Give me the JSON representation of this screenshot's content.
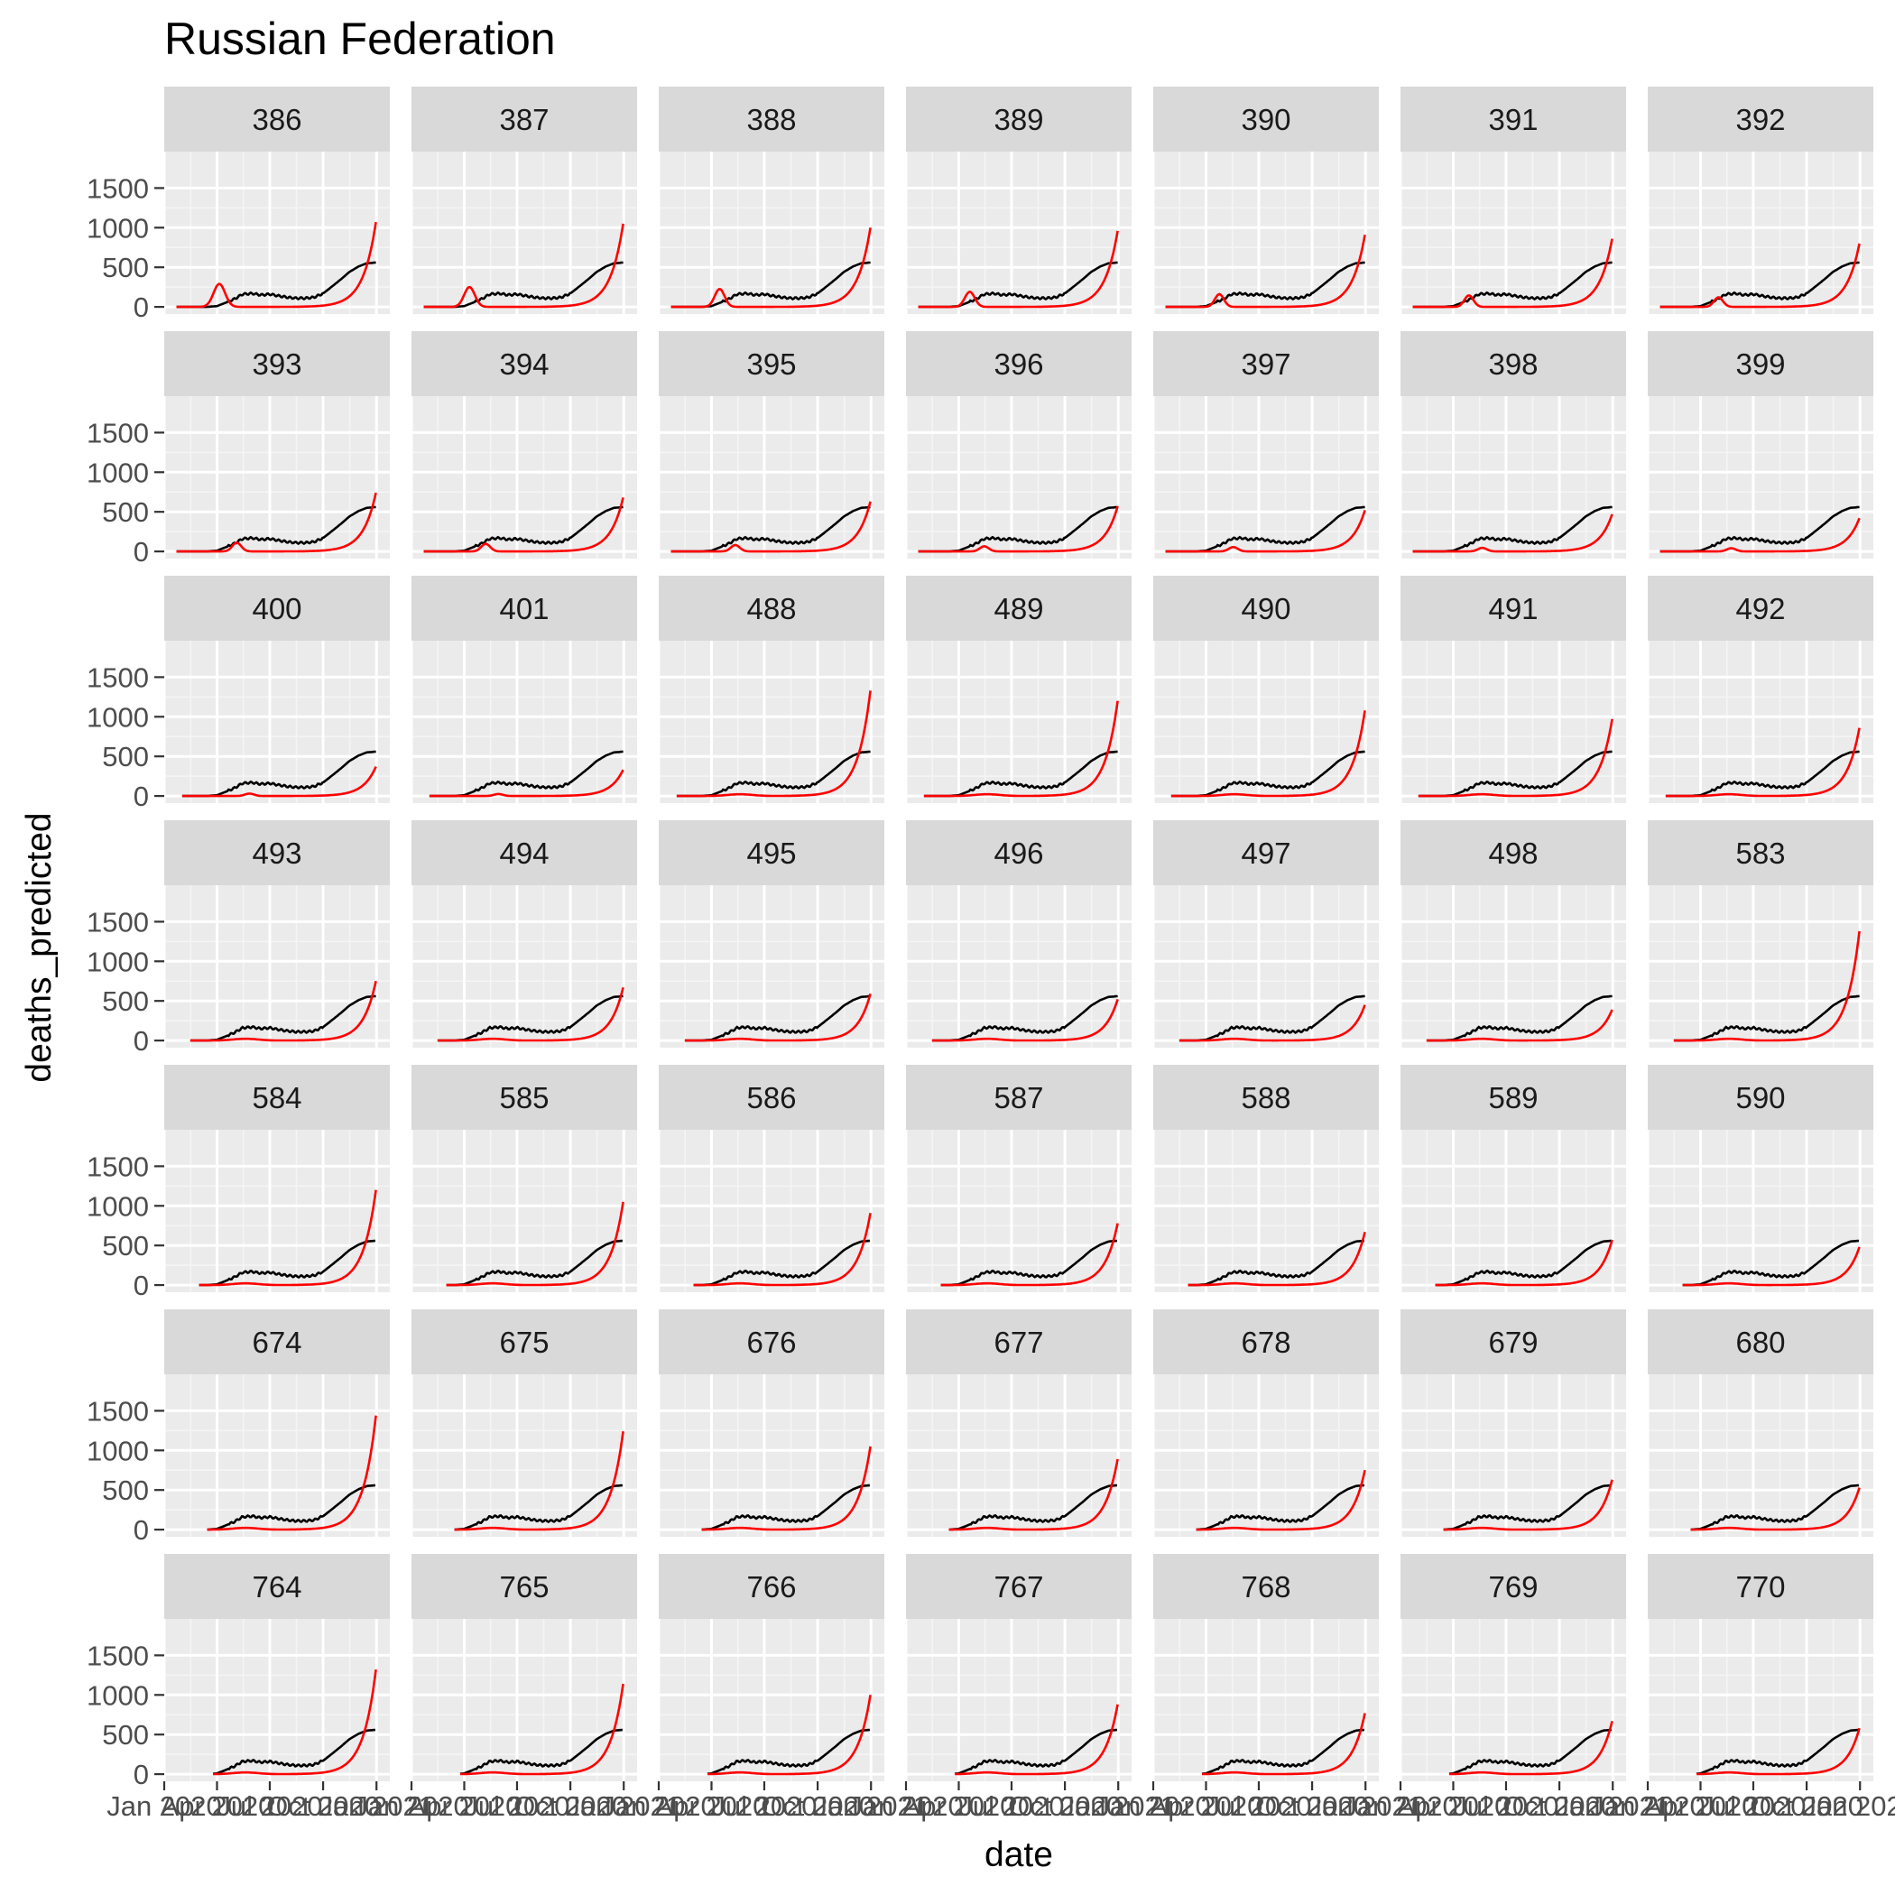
{
  "chart_data": {
    "type": "line",
    "title": "Russian Federation",
    "xlabel": "date",
    "ylabel": "deaths_predicted",
    "facet_layout": "7 columns x 7 rows, shared axes",
    "grid": true,
    "legend": "none",
    "colors": {
      "panel_background": "#ebebeb",
      "strip_background": "#d9d9d9",
      "grid_major": "#ffffff",
      "grid_minor": "#f5f5f5",
      "observed_line": "#000000",
      "predicted_line": "#ff0000"
    },
    "x_ticks": [
      "Jan 2020",
      "Apr 2020",
      "Jul 2020",
      "Oct 2020",
      "Jan 2021"
    ],
    "x_tick_labels": [
      "Jan 2020",
      "Apr 2020",
      "Jul 2020",
      "Oct 2020",
      "Jan 2021"
    ],
    "xlim": [
      "2020-01-01",
      "2021-01-24"
    ],
    "y_ticks": [
      0,
      500,
      1000,
      1500
    ],
    "ylim": [
      -90,
      1960
    ],
    "observed": {
      "dates": [
        "2020-01-22",
        "2020-03-15",
        "2020-04-01",
        "2020-04-15",
        "2020-05-01",
        "2020-05-15",
        "2020-06-01",
        "2020-06-15",
        "2020-07-01",
        "2020-07-15",
        "2020-08-01",
        "2020-08-15",
        "2020-09-01",
        "2020-09-15",
        "2020-10-01",
        "2020-10-15",
        "2020-11-01",
        "2020-11-15",
        "2020-12-01",
        "2020-12-15",
        "2020-12-31"
      ],
      "values": [
        0,
        0,
        10,
        50,
        100,
        160,
        170,
        150,
        160,
        140,
        120,
        110,
        110,
        120,
        170,
        250,
        350,
        440,
        510,
        550,
        560
      ]
    },
    "facets": [
      {
        "label": "386",
        "start": "2020-01-22",
        "end_value": 1070,
        "bump": 290,
        "bump_date": "2020-04-05",
        "bump_width_days": 14
      },
      {
        "label": "387",
        "start": "2020-01-22",
        "end_value": 1050,
        "bump": 250,
        "bump_date": "2020-04-10",
        "bump_width_days": 13
      },
      {
        "label": "388",
        "start": "2020-01-22",
        "end_value": 1000,
        "bump": 225,
        "bump_date": "2020-04-15",
        "bump_width_days": 12
      },
      {
        "label": "389",
        "start": "2020-01-22",
        "end_value": 960,
        "bump": 190,
        "bump_date": "2020-04-20",
        "bump_width_days": 12
      },
      {
        "label": "390",
        "start": "2020-01-22",
        "end_value": 910,
        "bump": 160,
        "bump_date": "2020-04-24",
        "bump_width_days": 11
      },
      {
        "label": "391",
        "start": "2020-01-22",
        "end_value": 860,
        "bump": 145,
        "bump_date": "2020-04-28",
        "bump_width_days": 11
      },
      {
        "label": "392",
        "start": "2020-01-22",
        "end_value": 800,
        "bump": 120,
        "bump_date": "2020-05-02",
        "bump_width_days": 11
      },
      {
        "label": "393",
        "start": "2020-01-22",
        "end_value": 740,
        "bump": 110,
        "bump_date": "2020-05-05",
        "bump_width_days": 11
      },
      {
        "label": "394",
        "start": "2020-01-22",
        "end_value": 680,
        "bump": 95,
        "bump_date": "2020-05-08",
        "bump_width_days": 11
      },
      {
        "label": "395",
        "start": "2020-01-22",
        "end_value": 630,
        "bump": 80,
        "bump_date": "2020-05-12",
        "bump_width_days": 11
      },
      {
        "label": "396",
        "start": "2020-01-22",
        "end_value": 570,
        "bump": 65,
        "bump_date": "2020-05-15",
        "bump_width_days": 11
      },
      {
        "label": "397",
        "start": "2020-01-22",
        "end_value": 520,
        "bump": 55,
        "bump_date": "2020-05-18",
        "bump_width_days": 11
      },
      {
        "label": "398",
        "start": "2020-01-22",
        "end_value": 470,
        "bump": 45,
        "bump_date": "2020-05-21",
        "bump_width_days": 11
      },
      {
        "label": "399",
        "start": "2020-01-22",
        "end_value": 420,
        "bump": 40,
        "bump_date": "2020-05-24",
        "bump_width_days": 11
      },
      {
        "label": "400",
        "start": "2020-02-01",
        "end_value": 370,
        "bump": 30,
        "bump_date": "2020-05-27",
        "bump_width_days": 11
      },
      {
        "label": "401",
        "start": "2020-02-01",
        "end_value": 330,
        "bump": 25,
        "bump_date": "2020-05-30",
        "bump_width_days": 11
      },
      {
        "label": "488",
        "start": "2020-02-01",
        "end_value": 1330,
        "bump": 0,
        "bump_date": "2020-06-01",
        "bump_width_days": 11
      },
      {
        "label": "489",
        "start": "2020-02-01",
        "end_value": 1200,
        "bump": 0,
        "bump_date": "2020-06-01",
        "bump_width_days": 11
      },
      {
        "label": "490",
        "start": "2020-02-01",
        "end_value": 1080,
        "bump": 0,
        "bump_date": "2020-06-01",
        "bump_width_days": 11
      },
      {
        "label": "491",
        "start": "2020-02-01",
        "end_value": 970,
        "bump": 0,
        "bump_date": "2020-06-01",
        "bump_width_days": 11
      },
      {
        "label": "492",
        "start": "2020-02-01",
        "end_value": 860,
        "bump": 0,
        "bump_date": "2020-06-01",
        "bump_width_days": 11
      },
      {
        "label": "493",
        "start": "2020-02-15",
        "end_value": 750,
        "bump": 0,
        "bump_date": "2020-06-01",
        "bump_width_days": 11
      },
      {
        "label": "494",
        "start": "2020-02-15",
        "end_value": 670,
        "bump": 0,
        "bump_date": "2020-06-01",
        "bump_width_days": 11
      },
      {
        "label": "495",
        "start": "2020-02-15",
        "end_value": 590,
        "bump": 0,
        "bump_date": "2020-06-01",
        "bump_width_days": 11
      },
      {
        "label": "496",
        "start": "2020-02-15",
        "end_value": 520,
        "bump": 0,
        "bump_date": "2020-06-01",
        "bump_width_days": 11
      },
      {
        "label": "497",
        "start": "2020-02-15",
        "end_value": 450,
        "bump": 0,
        "bump_date": "2020-06-01",
        "bump_width_days": 11
      },
      {
        "label": "498",
        "start": "2020-02-15",
        "end_value": 390,
        "bump": 0,
        "bump_date": "2020-06-01",
        "bump_width_days": 11
      },
      {
        "label": "583",
        "start": "2020-02-15",
        "end_value": 1380,
        "bump": 0,
        "bump_date": "2020-06-01",
        "bump_width_days": 11
      },
      {
        "label": "584",
        "start": "2020-03-01",
        "end_value": 1200,
        "bump": 0,
        "bump_date": "2020-06-01",
        "bump_width_days": 11
      },
      {
        "label": "585",
        "start": "2020-03-01",
        "end_value": 1050,
        "bump": 0,
        "bump_date": "2020-06-01",
        "bump_width_days": 11
      },
      {
        "label": "586",
        "start": "2020-03-01",
        "end_value": 910,
        "bump": 0,
        "bump_date": "2020-06-01",
        "bump_width_days": 11
      },
      {
        "label": "587",
        "start": "2020-03-01",
        "end_value": 780,
        "bump": 0,
        "bump_date": "2020-06-01",
        "bump_width_days": 11
      },
      {
        "label": "588",
        "start": "2020-03-01",
        "end_value": 670,
        "bump": 0,
        "bump_date": "2020-06-01",
        "bump_width_days": 11
      },
      {
        "label": "589",
        "start": "2020-03-01",
        "end_value": 570,
        "bump": 0,
        "bump_date": "2020-06-01",
        "bump_width_days": 11
      },
      {
        "label": "590",
        "start": "2020-03-01",
        "end_value": 480,
        "bump": 0,
        "bump_date": "2020-06-01",
        "bump_width_days": 11
      },
      {
        "label": "674",
        "start": "2020-03-15",
        "end_value": 1440,
        "bump": 0,
        "bump_date": "2020-06-01",
        "bump_width_days": 11
      },
      {
        "label": "675",
        "start": "2020-03-15",
        "end_value": 1240,
        "bump": 0,
        "bump_date": "2020-06-01",
        "bump_width_days": 11
      },
      {
        "label": "676",
        "start": "2020-03-15",
        "end_value": 1050,
        "bump": 0,
        "bump_date": "2020-06-01",
        "bump_width_days": 11
      },
      {
        "label": "677",
        "start": "2020-03-15",
        "end_value": 890,
        "bump": 0,
        "bump_date": "2020-06-01",
        "bump_width_days": 11
      },
      {
        "label": "678",
        "start": "2020-03-15",
        "end_value": 750,
        "bump": 0,
        "bump_date": "2020-06-01",
        "bump_width_days": 11
      },
      {
        "label": "679",
        "start": "2020-03-15",
        "end_value": 630,
        "bump": 0,
        "bump_date": "2020-06-01",
        "bump_width_days": 11
      },
      {
        "label": "680",
        "start": "2020-03-15",
        "end_value": 530,
        "bump": 0,
        "bump_date": "2020-06-01",
        "bump_width_days": 11
      },
      {
        "label": "764",
        "start": "2020-03-25",
        "end_value": 1320,
        "bump": 0,
        "bump_date": "2020-06-01",
        "bump_width_days": 11
      },
      {
        "label": "765",
        "start": "2020-03-25",
        "end_value": 1140,
        "bump": 0,
        "bump_date": "2020-06-01",
        "bump_width_days": 11
      },
      {
        "label": "766",
        "start": "2020-03-25",
        "end_value": 1000,
        "bump": 0,
        "bump_date": "2020-06-01",
        "bump_width_days": 11
      },
      {
        "label": "767",
        "start": "2020-03-25",
        "end_value": 880,
        "bump": 0,
        "bump_date": "2020-06-01",
        "bump_width_days": 11
      },
      {
        "label": "768",
        "start": "2020-03-25",
        "end_value": 770,
        "bump": 0,
        "bump_date": "2020-06-01",
        "bump_width_days": 11
      },
      {
        "label": "769",
        "start": "2020-03-25",
        "end_value": 670,
        "bump": 0,
        "bump_date": "2020-06-01",
        "bump_width_days": 11
      },
      {
        "label": "770",
        "start": "2020-03-25",
        "end_value": 580,
        "bump": 0,
        "bump_date": "2020-06-01",
        "bump_width_days": 11
      }
    ]
  }
}
